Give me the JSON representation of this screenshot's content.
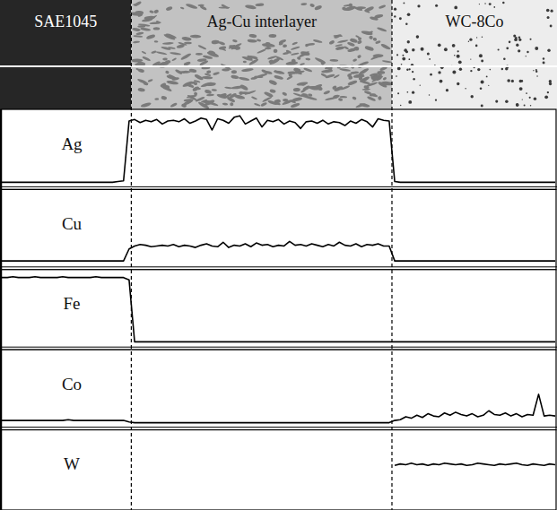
{
  "chart_data": {
    "type": "line",
    "tick_labels": false,
    "regions": [
      "SAE1045",
      "Ag-Cu interlayer",
      "WC-8Co"
    ],
    "interfaces": [
      23.4,
      70.5
    ],
    "xlim": [
      0,
      100
    ],
    "ylim": [
      0,
      100
    ],
    "x": [
      0,
      1,
      2,
      3,
      4,
      5,
      6,
      7,
      8,
      9,
      10,
      11,
      12,
      13,
      14,
      15,
      16,
      17,
      18,
      19,
      20,
      21,
      22,
      23,
      24,
      25,
      26,
      27,
      28,
      29,
      30,
      31,
      32,
      33,
      34,
      35,
      36,
      37,
      38,
      39,
      40,
      41,
      42,
      43,
      44,
      45,
      46,
      47,
      48,
      49,
      50,
      51,
      52,
      53,
      54,
      55,
      56,
      57,
      58,
      59,
      60,
      61,
      62,
      63,
      64,
      65,
      66,
      67,
      68,
      69,
      70,
      71,
      72,
      73,
      74,
      75,
      76,
      77,
      78,
      79,
      80,
      81,
      82,
      83,
      84,
      85,
      86,
      87,
      88,
      89,
      90,
      91,
      92,
      93,
      94,
      95,
      96,
      97,
      98,
      99,
      100
    ],
    "series": [
      {
        "name": "Ag",
        "color": "#000000",
        "values": [
          6,
          6,
          6,
          6,
          6,
          6,
          6,
          6,
          6,
          6,
          6,
          6,
          6,
          6,
          6,
          6,
          6,
          6,
          6,
          6,
          6,
          7,
          8,
          88,
          90,
          86,
          89,
          87,
          90,
          84,
          88,
          89,
          87,
          91,
          85,
          88,
          92,
          90,
          76,
          91,
          89,
          85,
          93,
          95,
          84,
          88,
          92,
          80,
          89,
          87,
          90,
          84,
          88,
          86,
          78,
          87,
          88,
          85,
          89,
          84,
          87,
          86,
          82,
          88,
          85,
          90,
          87,
          80,
          91,
          89,
          88,
          7,
          6,
          6,
          6,
          6,
          6,
          6,
          6,
          6,
          6,
          6,
          6,
          6,
          6,
          6,
          6,
          6,
          6,
          6,
          6,
          6,
          6,
          6,
          6,
          6,
          6,
          6,
          6,
          6,
          6
        ]
      },
      {
        "name": "Cu",
        "color": "#000000",
        "values": [
          8,
          8,
          8,
          8,
          8,
          8,
          8,
          8,
          8,
          8,
          8,
          8,
          8,
          8,
          8,
          8,
          8,
          8,
          8,
          8,
          8,
          8,
          8,
          24,
          28,
          30,
          29,
          27,
          28,
          29,
          28,
          30,
          27,
          29,
          28,
          26,
          29,
          31,
          28,
          27,
          33,
          26,
          29,
          28,
          31,
          27,
          32,
          29,
          30,
          27,
          29,
          28,
          34,
          29,
          30,
          28,
          31,
          29,
          27,
          30,
          28,
          33,
          29,
          28,
          31,
          27,
          30,
          29,
          31,
          28,
          28,
          8,
          8,
          8,
          8,
          8,
          8,
          8,
          8,
          8,
          8,
          8,
          8,
          8,
          8,
          8,
          8,
          8,
          8,
          8,
          8,
          8,
          8,
          8,
          8,
          8,
          8,
          8,
          8,
          8,
          8
        ]
      },
      {
        "name": "Fe",
        "color": "#000000",
        "values": [
          93,
          93,
          94,
          93,
          93,
          93,
          94,
          93,
          93,
          93,
          93,
          94,
          93,
          93,
          93,
          93,
          93,
          94,
          93,
          93,
          93,
          93,
          93,
          90,
          7,
          7,
          7,
          7,
          7,
          7,
          7,
          7,
          7,
          7,
          7,
          7,
          7,
          7,
          7,
          7,
          7,
          7,
          7,
          7,
          7,
          7,
          7,
          7,
          7,
          7,
          7,
          7,
          7,
          7,
          7,
          7,
          7,
          7,
          7,
          7,
          7,
          7,
          7,
          7,
          7,
          7,
          7,
          7,
          7,
          7,
          7,
          7,
          7,
          7,
          7,
          7,
          7,
          7,
          7,
          7,
          7,
          7,
          7,
          7,
          7,
          7,
          7,
          7,
          7,
          7,
          7,
          7,
          7,
          7,
          7,
          7,
          7,
          7,
          7,
          7,
          7
        ]
      },
      {
        "name": "Co",
        "color": "#000000",
        "values": [
          9,
          9,
          9,
          9,
          9,
          9,
          9,
          9,
          9,
          9,
          9,
          9,
          10,
          9,
          9,
          9,
          9,
          9,
          9,
          9,
          9,
          9,
          9,
          7,
          6,
          6,
          6,
          6,
          6,
          6,
          6,
          6,
          6,
          6,
          6,
          6,
          6,
          6,
          6,
          6,
          6,
          6,
          6,
          6,
          6,
          6,
          6,
          6,
          6,
          6,
          6,
          6,
          6,
          6,
          6,
          6,
          6,
          6,
          6,
          6,
          6,
          6,
          6,
          6,
          6,
          6,
          6,
          6,
          6,
          6,
          6,
          9,
          10,
          14,
          12,
          16,
          13,
          18,
          15,
          14,
          19,
          16,
          20,
          17,
          15,
          18,
          14,
          16,
          22,
          17,
          16,
          19,
          15,
          18,
          14,
          17,
          16,
          44,
          15,
          16,
          15
        ]
      },
      {
        "name": "W",
        "color": "#000000",
        "values": [
          null,
          null,
          null,
          null,
          null,
          null,
          null,
          null,
          null,
          null,
          null,
          null,
          null,
          null,
          null,
          null,
          null,
          null,
          null,
          null,
          null,
          null,
          null,
          null,
          null,
          null,
          null,
          null,
          null,
          null,
          null,
          null,
          null,
          null,
          null,
          null,
          null,
          null,
          null,
          null,
          null,
          null,
          null,
          null,
          null,
          null,
          null,
          null,
          null,
          null,
          null,
          null,
          null,
          null,
          null,
          null,
          null,
          null,
          null,
          null,
          null,
          null,
          null,
          null,
          null,
          null,
          null,
          null,
          null,
          null,
          null,
          56,
          58,
          57,
          59,
          57,
          58,
          56,
          58,
          57,
          59,
          58,
          57,
          58,
          56,
          57,
          59,
          58,
          57,
          56,
          58,
          57,
          58,
          59,
          57,
          56,
          58,
          57,
          56,
          58,
          57
        ]
      }
    ]
  }
}
